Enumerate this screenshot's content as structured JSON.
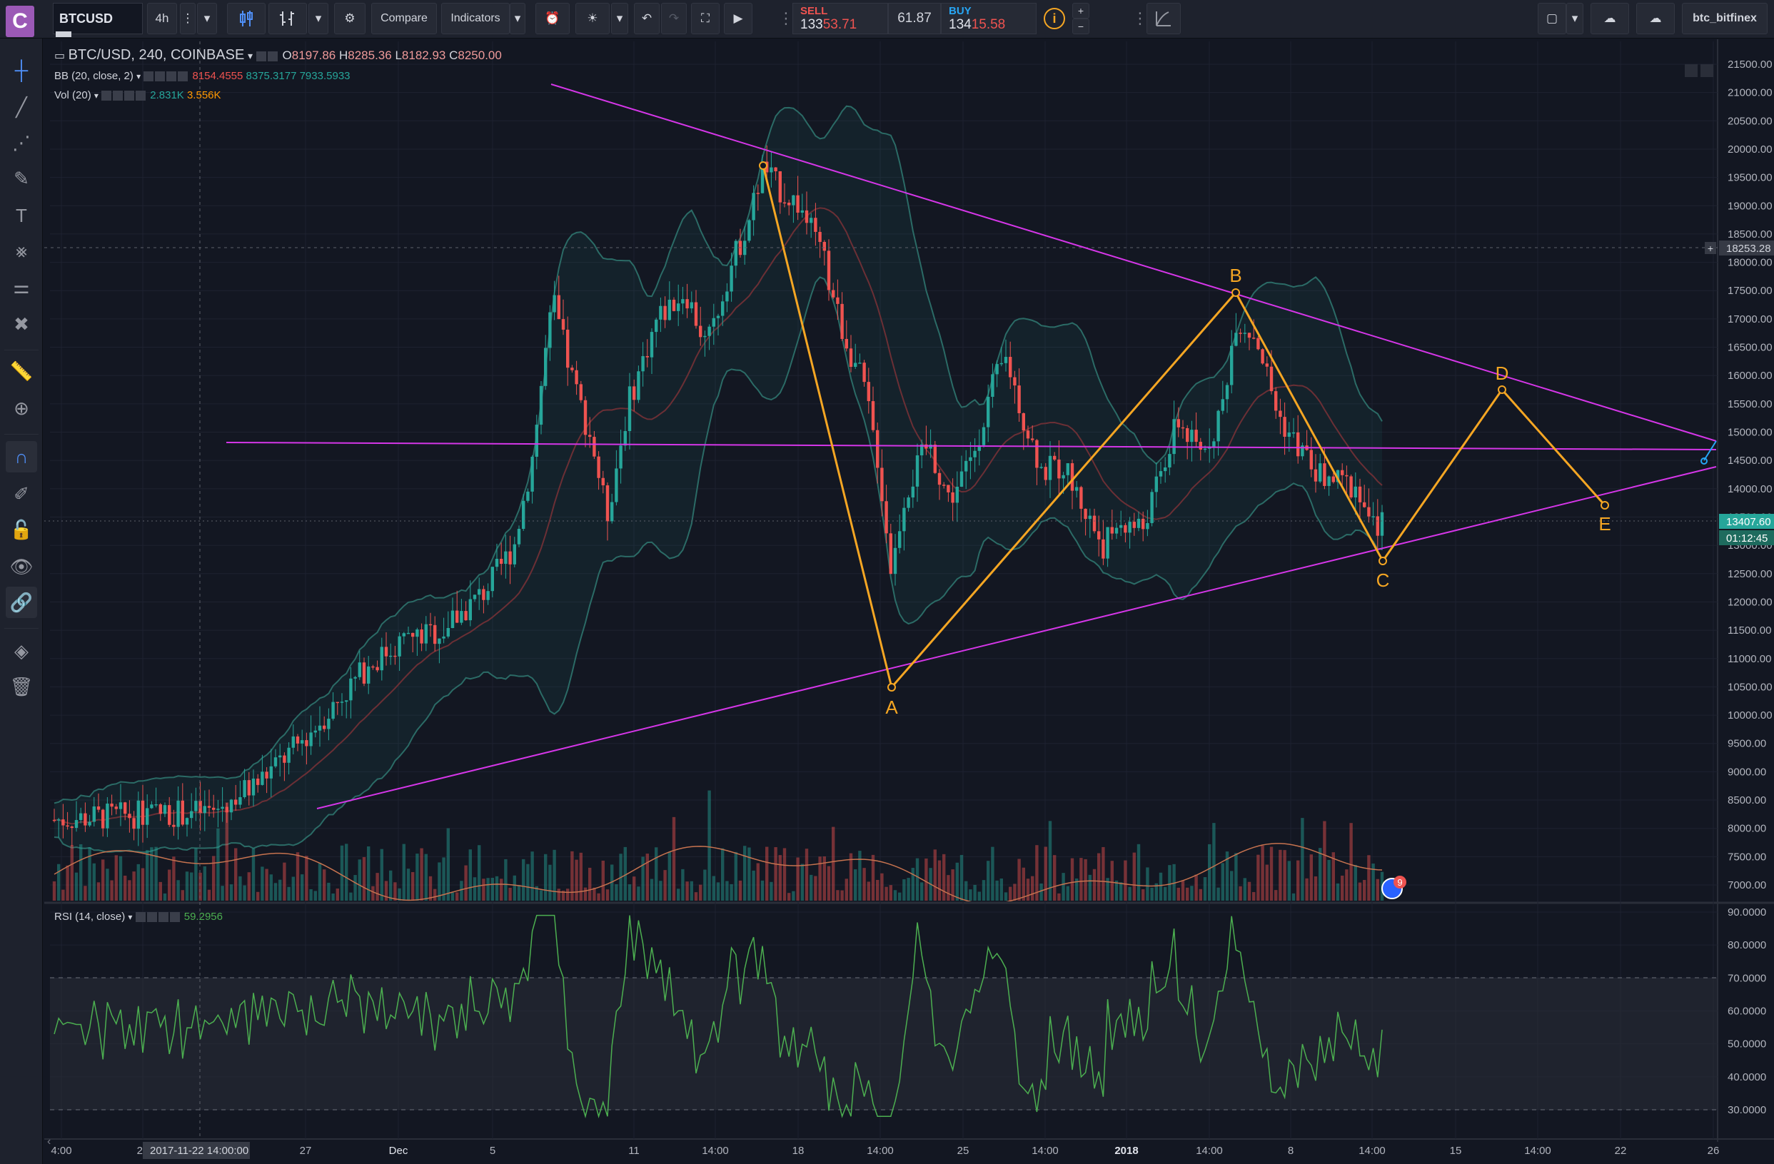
{
  "toolbar": {
    "logo": "C",
    "symbol": "BTCUSD",
    "interval": "4h",
    "compare_label": "Compare",
    "indicators_label": "Indicators",
    "sell_label": "SELL",
    "sell_price_prefix": "133",
    "sell_price_suffix": "53.71",
    "spread": "61.87",
    "buy_label": "BUY",
    "buy_price_prefix": "134",
    "buy_price_suffix": "15.58",
    "account": "btc_bitfinex"
  },
  "legend": {
    "title": "BTC/USD, 240, COINBASE",
    "o_label": "O",
    "o": "8197.86",
    "h_label": "H",
    "h": "8285.36",
    "l_label": "L",
    "l": "8182.93",
    "c_label": "C",
    "c": "8250.00",
    "bb_label": "BB (20, close, 2)",
    "bb_values": [
      "8154.4555",
      "8375.3177",
      "7933.5933"
    ],
    "vol_label": "Vol (20)",
    "vol_values": [
      "2.831K",
      "3.556K"
    ],
    "rsi_label": "RSI (14, close)",
    "rsi_value": "59.2956"
  },
  "price_axis": {
    "labels": [
      "21500.00",
      "21000.00",
      "20500.00",
      "20000.00",
      "19500.00",
      "19000.00",
      "18500.00",
      "18000.00",
      "17500.00",
      "17000.00",
      "16500.00",
      "16000.00",
      "15500.00",
      "15000.00",
      "14500.00",
      "14000.00",
      "13500.00",
      "13000.00",
      "12500.00",
      "12000.00",
      "11500.00",
      "11000.00",
      "10500.00",
      "10000.00",
      "9500.00",
      "9000.00",
      "8500.00",
      "8000.00",
      "7500.00",
      "7000.00"
    ],
    "crosshair_price": "18253.28",
    "last_price": "13407.60",
    "countdown": "01:12:45"
  },
  "rsi_axis": {
    "labels": [
      "90.0000",
      "80.0000",
      "70.0000",
      "60.0000",
      "50.0000",
      "40.0000",
      "30.0000"
    ]
  },
  "time_axis": {
    "labels": [
      "4:00",
      "20",
      "27",
      "Dec",
      "5",
      "11",
      "14:00",
      "18",
      "14:00",
      "25",
      "14:00",
      "2018",
      "14:00",
      "8",
      "14:00",
      "15",
      "14:00",
      "22",
      "26"
    ],
    "crosshair_time": "2017-11-22 14:00:00"
  },
  "pattern": {
    "points": [
      "A",
      "B",
      "C",
      "D",
      "E"
    ],
    "line_color": "#f5a623",
    "triangle_color": "#d536e8"
  },
  "events": {
    "count": "9"
  },
  "colors": {
    "background": "#131722",
    "up": "#26a69a",
    "down": "#ef5350",
    "rsi": "#4caf50"
  }
}
